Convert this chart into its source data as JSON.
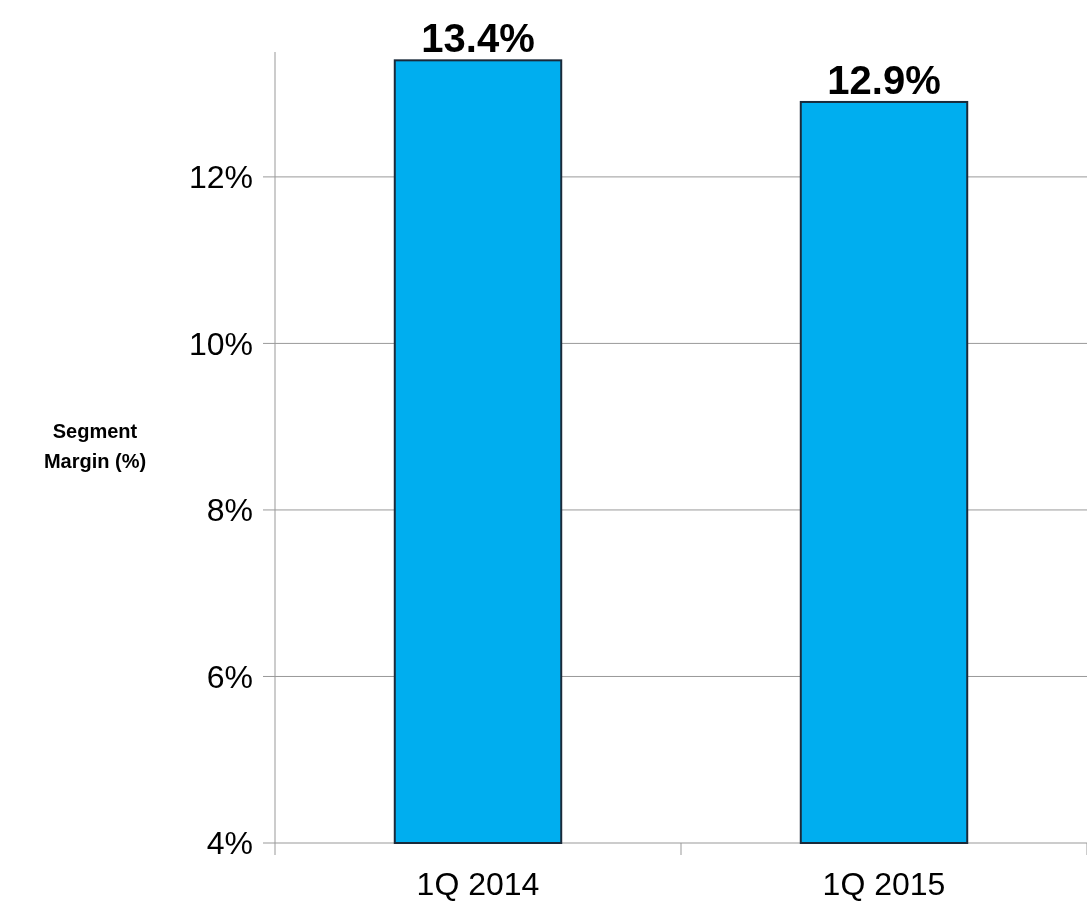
{
  "chart_data": {
    "type": "bar",
    "ylabel": "Segment Margin (%)",
    "categories": [
      "1Q 2014",
      "1Q 2015"
    ],
    "values": [
      13.4,
      12.9
    ],
    "color": "#00aeef",
    "ylim": [
      4,
      13.5
    ],
    "yticks": [
      {
        "value": 4,
        "label": "4%"
      },
      {
        "value": 6,
        "label": "6%"
      },
      {
        "value": 8,
        "label": "8%"
      },
      {
        "value": 10,
        "label": "10%"
      },
      {
        "value": 12,
        "label": "12%"
      }
    ],
    "value_labels": [
      "13.4%",
      "12.9%"
    ],
    "grid": "y"
  }
}
